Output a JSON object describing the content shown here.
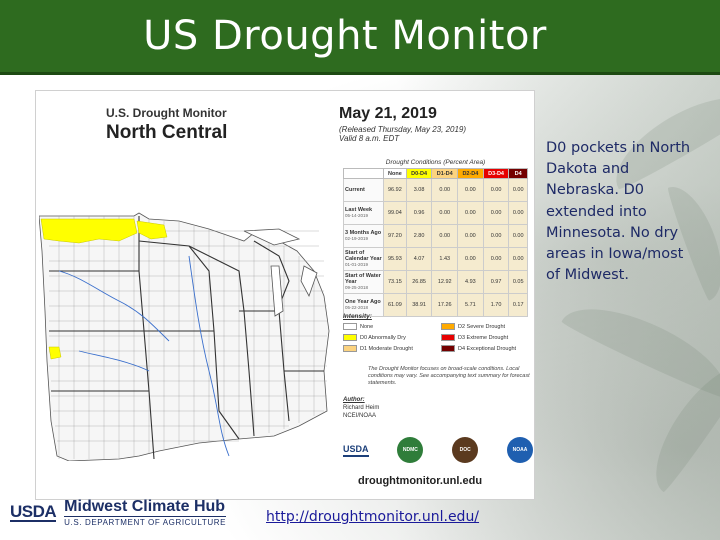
{
  "slide": {
    "title": "US Drought Monitor",
    "side_text": "D0 pockets in North Dakota and Nebraska.  D0 extended into Minnesota.  No dry areas in Iowa/most of Midwest.",
    "link_text": "http://droughtmonitor.unl.edu/"
  },
  "drought_monitor": {
    "brand_line1": "U.S. Drought Monitor",
    "region": "North Central",
    "date": "May 21, 2019",
    "released": "(Released Thursday, May 23, 2019)",
    "valid": "Valid 8 a.m. EDT",
    "table_caption": "Drought Conditions (Percent Area)",
    "columns": [
      "None",
      "D0-D4",
      "D1-D4",
      "D2-D4",
      "D3-D4",
      "D4"
    ],
    "column_colors": [
      "#ffffff",
      "#ffff00",
      "#fcd37f",
      "#ffaa00",
      "#e60000",
      "#730000"
    ],
    "rows": [
      {
        "label": "Current",
        "sub": "",
        "values": [
          "96.92",
          "3.08",
          "0.00",
          "0.00",
          "0.00",
          "0.00"
        ]
      },
      {
        "label": "Last Week",
        "sub": "05-14-2019",
        "values": [
          "99.04",
          "0.96",
          "0.00",
          "0.00",
          "0.00",
          "0.00"
        ]
      },
      {
        "label": "3 Months Ago",
        "sub": "02-19-2019",
        "values": [
          "97.20",
          "2.80",
          "0.00",
          "0.00",
          "0.00",
          "0.00"
        ]
      },
      {
        "label": "Start of Calendar Year",
        "sub": "01-01-2019",
        "values": [
          "95.93",
          "4.07",
          "1.43",
          "0.00",
          "0.00",
          "0.00"
        ]
      },
      {
        "label": "Start of Water Year",
        "sub": "09-25-2018",
        "values": [
          "73.15",
          "26.85",
          "12.92",
          "4.93",
          "0.97",
          "0.05"
        ]
      },
      {
        "label": "One Year Ago",
        "sub": "05-22-2018",
        "values": [
          "61.09",
          "38.91",
          "17.26",
          "5.71",
          "1.70",
          "0.17"
        ]
      }
    ],
    "legend_title": "Intensity:",
    "legend": [
      {
        "label": "None",
        "color": "#ffffff"
      },
      {
        "label": "D2 Severe Drought",
        "color": "#ffaa00"
      },
      {
        "label": "D0 Abnormally Dry",
        "color": "#ffff00"
      },
      {
        "label": "D3 Extreme Drought",
        "color": "#e60000"
      },
      {
        "label": "D1 Moderate Drought",
        "color": "#fcd37f"
      },
      {
        "label": "D4 Exceptional Drought",
        "color": "#730000"
      }
    ],
    "note": "The Drought Monitor focuses on broad-scale conditions. Local conditions may vary. See accompanying text summary for forecast statements.",
    "author_heading": "Author:",
    "author_name": "Richard Heim",
    "author_org": "NCEI/NOAA",
    "logos": [
      "USDA",
      "NDMC",
      "DOC",
      "NOAA"
    ],
    "url": "droughtmonitor.unl.edu"
  },
  "footer": {
    "usda": "USDA",
    "hub_name": "Midwest Climate Hub",
    "dept": "U.S. DEPARTMENT OF AGRICULTURE"
  },
  "colors": {
    "title_bar": "#2e6b1f",
    "d0": "#ffff00",
    "link": "#1a1a9a",
    "side_text": "#1e2a66"
  }
}
